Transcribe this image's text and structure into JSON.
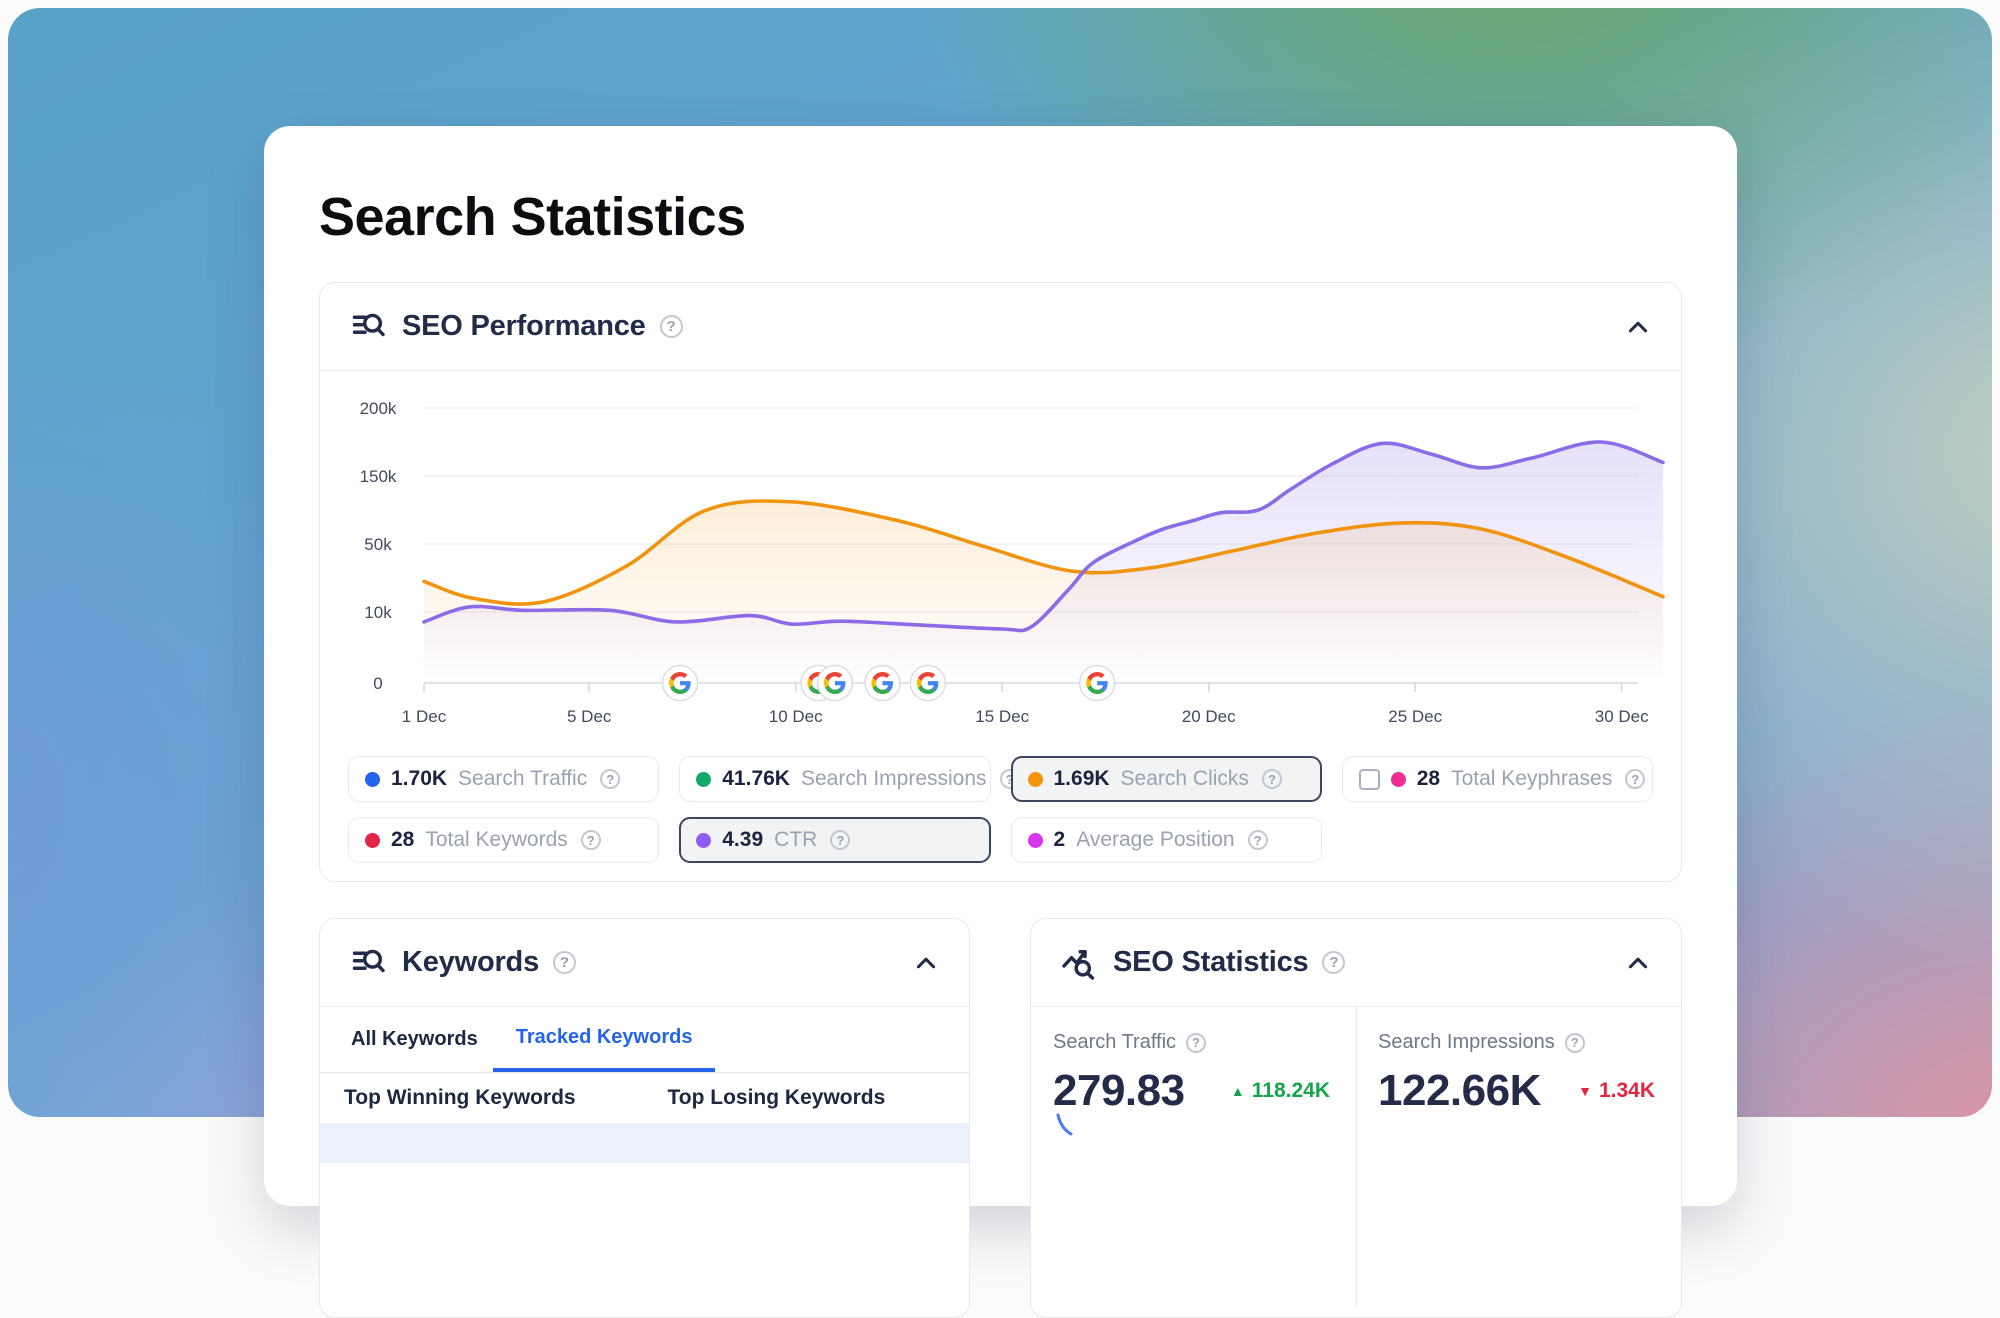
{
  "page": {
    "title": "Search Statistics"
  },
  "ui": {
    "help_glyph": "?"
  },
  "panels": {
    "seo_performance": {
      "title": "SEO Performance",
      "legend": [
        {
          "value": "1.70K",
          "label": "Search Traffic",
          "color": "#2563eb",
          "selected": false,
          "checkbox": false
        },
        {
          "value": "41.76K",
          "label": "Search Impressions",
          "color": "#0fa968",
          "selected": false,
          "checkbox": false
        },
        {
          "value": "1.69K",
          "label": "Search Clicks",
          "color": "#f5930b",
          "selected": true,
          "checkbox": false
        },
        {
          "value": "28",
          "label": "Total Keyphrases",
          "color": "#ee2d92",
          "selected": false,
          "checkbox": true
        },
        {
          "value": "28",
          "label": "Total Keywords",
          "color": "#e5244a",
          "selected": false,
          "checkbox": false
        },
        {
          "value": "4.39",
          "label": "CTR",
          "color": "#8b5cf6",
          "selected": true,
          "checkbox": false
        },
        {
          "value": "2",
          "label": "Average Position",
          "color": "#d935ee",
          "selected": false,
          "checkbox": false
        }
      ]
    },
    "keywords": {
      "title": "Keywords",
      "tabs": [
        {
          "label": "All Keywords",
          "active": false
        },
        {
          "label": "Tracked Keywords",
          "active": true
        }
      ],
      "columns": [
        "Top Winning Keywords",
        "Top Losing Keywords"
      ]
    },
    "seo_statistics": {
      "title": "SEO Statistics",
      "stats": [
        {
          "label": "Search Traffic",
          "value": "279.83",
          "delta": "118.24K",
          "direction": "up",
          "delta_color": "#16a34a"
        },
        {
          "label": "Search Impressions",
          "value": "122.66K",
          "delta": "1.34K",
          "direction": "down",
          "delta_color": "#e2263e"
        }
      ]
    }
  },
  "chart_data": {
    "type": "area",
    "title": "SEO Performance",
    "x_ticks": [
      "1 Dec",
      "5 Dec",
      "10 Dec",
      "15 Dec",
      "20 Dec",
      "25 Dec",
      "30 Dec"
    ],
    "x_tick_days": [
      1,
      5,
      10,
      15,
      20,
      25,
      30
    ],
    "x_range_days": [
      1,
      31
    ],
    "y_ticks": [
      "0",
      "10k",
      "50k",
      "150k",
      "200k"
    ],
    "y_tick_values": [
      0,
      10000,
      50000,
      150000,
      200000
    ],
    "grid": true,
    "legend_position": "bottom",
    "series": [
      {
        "name": "Search Clicks",
        "color": "#f0930e",
        "points": [
          [
            1,
            28000
          ],
          [
            2.2,
            18000
          ],
          [
            3.9,
            16000
          ],
          [
            5.9,
            37000
          ],
          [
            7.8,
            99000
          ],
          [
            9.9,
            112000
          ],
          [
            12.5,
            84000
          ],
          [
            14.5,
            49000
          ],
          [
            16.7,
            34000
          ],
          [
            18.6,
            36000
          ],
          [
            20.6,
            46000
          ],
          [
            22.6,
            66000
          ],
          [
            24.7,
            81000
          ],
          [
            26.6,
            72000
          ],
          [
            28.7,
            42000
          ],
          [
            31,
            19000
          ]
        ]
      },
      {
        "name": "CTR",
        "color": "#8b6ce6",
        "points": [
          [
            1,
            8600
          ],
          [
            2.1,
            13000
          ],
          [
            3.4,
            11000
          ],
          [
            5.5,
            11000
          ],
          [
            7.1,
            8600
          ],
          [
            8.9,
            9500
          ],
          [
            9.9,
            8300
          ],
          [
            11.1,
            8700
          ],
          [
            12.9,
            8200
          ],
          [
            15,
            7600
          ],
          [
            15.7,
            7900
          ],
          [
            16.6,
            23000
          ],
          [
            17.2,
            39000
          ],
          [
            18.2,
            54000
          ],
          [
            18.9,
            72000
          ],
          [
            19.6,
            84000
          ],
          [
            20.3,
            96000
          ],
          [
            21.2,
            100000
          ],
          [
            22,
            131000
          ],
          [
            23,
            159000
          ],
          [
            24.2,
            174000
          ],
          [
            25.4,
            166000
          ],
          [
            26.6,
            156000
          ],
          [
            27.8,
            163000
          ],
          [
            29.5,
            175000
          ],
          [
            31,
            160000
          ]
        ]
      }
    ],
    "google_marker_days": [
      7.2,
      10.55,
      10.95,
      12.1,
      13.2,
      17.3
    ]
  }
}
